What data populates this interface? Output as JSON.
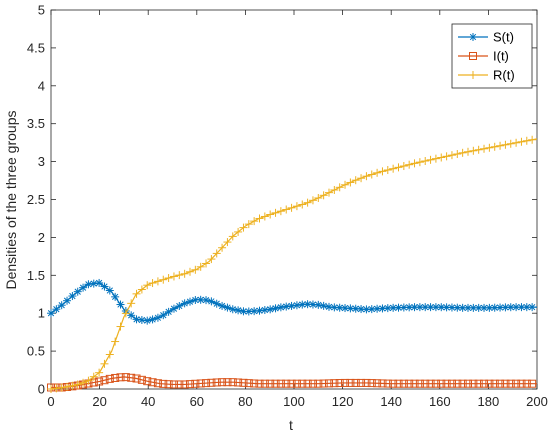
{
  "chart_data": {
    "type": "line",
    "title": "",
    "xlabel": "t",
    "ylabel": "Densities of the three groups",
    "xlim": [
      0,
      200
    ],
    "ylim": [
      0,
      5
    ],
    "xticks": [
      0,
      20,
      40,
      60,
      80,
      100,
      120,
      140,
      160,
      180,
      200
    ],
    "yticks": [
      0,
      0.5,
      1,
      1.5,
      2,
      2.5,
      3,
      3.5,
      4,
      4.5,
      5
    ],
    "xtick_labels": [
      "0",
      "20",
      "40",
      "60",
      "80",
      "100",
      "120",
      "140",
      "160",
      "180",
      "200"
    ],
    "ytick_labels": [
      "0",
      "0.5",
      "1",
      "1.5",
      "2",
      "2.5",
      "3",
      "3.5",
      "4",
      "4.5",
      "5"
    ],
    "grid": false,
    "legend_position": "top-right",
    "series": [
      {
        "name": "S(t)",
        "color": "#0072BD",
        "marker": "asterisk",
        "points": [
          [
            0,
            1.0
          ],
          [
            5,
            1.12
          ],
          [
            10,
            1.26
          ],
          [
            15,
            1.38
          ],
          [
            20,
            1.4
          ],
          [
            25,
            1.28
          ],
          [
            30,
            1.05
          ],
          [
            35,
            0.92
          ],
          [
            40,
            0.9
          ],
          [
            45,
            0.95
          ],
          [
            50,
            1.05
          ],
          [
            55,
            1.13
          ],
          [
            60,
            1.18
          ],
          [
            65,
            1.17
          ],
          [
            70,
            1.1
          ],
          [
            75,
            1.05
          ],
          [
            80,
            1.02
          ],
          [
            85,
            1.03
          ],
          [
            90,
            1.05
          ],
          [
            95,
            1.08
          ],
          [
            100,
            1.1
          ],
          [
            105,
            1.12
          ],
          [
            110,
            1.11
          ],
          [
            115,
            1.08
          ],
          [
            120,
            1.07
          ],
          [
            125,
            1.06
          ],
          [
            130,
            1.05
          ],
          [
            140,
            1.07
          ],
          [
            150,
            1.08
          ],
          [
            160,
            1.08
          ],
          [
            170,
            1.07
          ],
          [
            180,
            1.07
          ],
          [
            190,
            1.08
          ],
          [
            200,
            1.08
          ]
        ]
      },
      {
        "name": "I(t)",
        "color": "#D95319",
        "marker": "square",
        "points": [
          [
            0,
            0.02
          ],
          [
            5,
            0.02
          ],
          [
            10,
            0.04
          ],
          [
            15,
            0.07
          ],
          [
            20,
            0.1
          ],
          [
            25,
            0.14
          ],
          [
            30,
            0.16
          ],
          [
            35,
            0.14
          ],
          [
            40,
            0.1
          ],
          [
            45,
            0.07
          ],
          [
            50,
            0.06
          ],
          [
            55,
            0.06
          ],
          [
            60,
            0.07
          ],
          [
            65,
            0.08
          ],
          [
            70,
            0.09
          ],
          [
            75,
            0.09
          ],
          [
            80,
            0.08
          ],
          [
            85,
            0.07
          ],
          [
            90,
            0.07
          ],
          [
            100,
            0.07
          ],
          [
            110,
            0.07
          ],
          [
            120,
            0.08
          ],
          [
            130,
            0.08
          ],
          [
            140,
            0.07
          ],
          [
            150,
            0.07
          ],
          [
            160,
            0.07
          ],
          [
            170,
            0.07
          ],
          [
            180,
            0.07
          ],
          [
            190,
            0.07
          ],
          [
            200,
            0.07
          ]
        ]
      },
      {
        "name": "R(t)",
        "color": "#EDB120",
        "marker": "plus",
        "points": [
          [
            0,
            0.0
          ],
          [
            5,
            0.02
          ],
          [
            10,
            0.05
          ],
          [
            15,
            0.1
          ],
          [
            20,
            0.22
          ],
          [
            25,
            0.5
          ],
          [
            30,
            0.95
          ],
          [
            35,
            1.25
          ],
          [
            40,
            1.38
          ],
          [
            45,
            1.43
          ],
          [
            50,
            1.48
          ],
          [
            55,
            1.52
          ],
          [
            60,
            1.58
          ],
          [
            65,
            1.68
          ],
          [
            70,
            1.85
          ],
          [
            75,
            2.02
          ],
          [
            80,
            2.15
          ],
          [
            85,
            2.24
          ],
          [
            90,
            2.3
          ],
          [
            95,
            2.35
          ],
          [
            100,
            2.4
          ],
          [
            105,
            2.45
          ],
          [
            110,
            2.52
          ],
          [
            115,
            2.6
          ],
          [
            120,
            2.68
          ],
          [
            125,
            2.75
          ],
          [
            130,
            2.81
          ],
          [
            135,
            2.86
          ],
          [
            140,
            2.9
          ],
          [
            145,
            2.94
          ],
          [
            150,
            2.98
          ],
          [
            160,
            3.05
          ],
          [
            170,
            3.12
          ],
          [
            180,
            3.18
          ],
          [
            190,
            3.24
          ],
          [
            200,
            3.3
          ]
        ]
      }
    ]
  }
}
